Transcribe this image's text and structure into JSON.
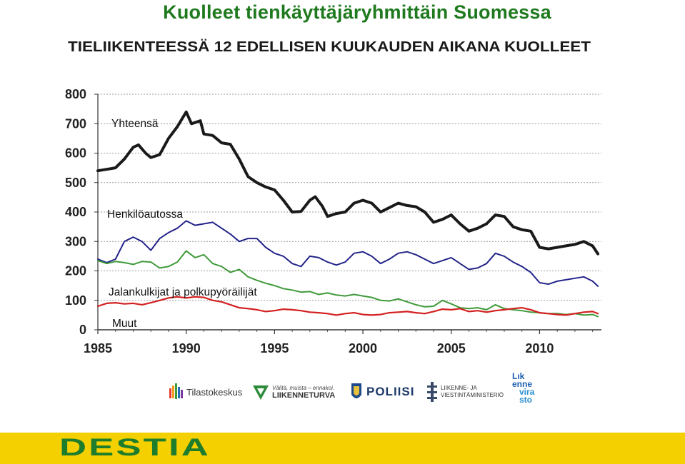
{
  "slide_title": "Kuolleet tienkäyttäjäryhmittäin Suomessa",
  "chart_data": {
    "type": "line",
    "title": "TIELIIKENTEESSÄ 12 EDELLISEN KUUKAUDEN AIKANA KUOLLEET",
    "xlabel": "",
    "ylabel": "",
    "xlim": [
      1985,
      2013.5
    ],
    "ylim": [
      0,
      800
    ],
    "x_ticks": [
      1985,
      1990,
      1995,
      2000,
      2005,
      2010
    ],
    "y_ticks": [
      0,
      100,
      200,
      300,
      400,
      500,
      600,
      700,
      800
    ],
    "grid": "horizontal dashed",
    "legend": "inline labels",
    "series": [
      {
        "name": "Yhteensä",
        "color": "#1a1a1a",
        "points": [
          [
            1985,
            540
          ],
          [
            1985.5,
            545
          ],
          [
            1986,
            550
          ],
          [
            1986.5,
            580
          ],
          [
            1987,
            620
          ],
          [
            1987.3,
            628
          ],
          [
            1987.7,
            600
          ],
          [
            1988,
            585
          ],
          [
            1988.5,
            595
          ],
          [
            1989,
            650
          ],
          [
            1989.5,
            690
          ],
          [
            1990,
            740
          ],
          [
            1990.3,
            700
          ],
          [
            1990.8,
            710
          ],
          [
            1991,
            665
          ],
          [
            1991.5,
            660
          ],
          [
            1992,
            635
          ],
          [
            1992.5,
            630
          ],
          [
            1993,
            580
          ],
          [
            1993.5,
            520
          ],
          [
            1994,
            500
          ],
          [
            1994.5,
            485
          ],
          [
            1995,
            475
          ],
          [
            1995.5,
            440
          ],
          [
            1996,
            400
          ],
          [
            1996.5,
            402
          ],
          [
            1997,
            440
          ],
          [
            1997.3,
            452
          ],
          [
            1997.7,
            420
          ],
          [
            1998,
            385
          ],
          [
            1998.5,
            395
          ],
          [
            1999,
            400
          ],
          [
            1999.5,
            430
          ],
          [
            2000,
            440
          ],
          [
            2000.5,
            430
          ],
          [
            2001,
            400
          ],
          [
            2001.5,
            415
          ],
          [
            2002,
            430
          ],
          [
            2002.5,
            422
          ],
          [
            2003,
            418
          ],
          [
            2003.5,
            400
          ],
          [
            2004,
            365
          ],
          [
            2004.5,
            375
          ],
          [
            2005,
            390
          ],
          [
            2005.5,
            360
          ],
          [
            2006,
            335
          ],
          [
            2006.5,
            345
          ],
          [
            2007,
            360
          ],
          [
            2007.5,
            390
          ],
          [
            2008,
            385
          ],
          [
            2008.5,
            350
          ],
          [
            2009,
            340
          ],
          [
            2009.5,
            335
          ],
          [
            2010,
            280
          ],
          [
            2010.5,
            275
          ],
          [
            2011,
            280
          ],
          [
            2011.5,
            285
          ],
          [
            2012,
            290
          ],
          [
            2012.5,
            300
          ],
          [
            2013,
            285
          ],
          [
            2013.3,
            258
          ]
        ]
      },
      {
        "name": "Henkilöautossa",
        "color": "#24248a",
        "points": [
          [
            1985,
            240
          ],
          [
            1985.5,
            228
          ],
          [
            1986,
            240
          ],
          [
            1986.5,
            300
          ],
          [
            1987,
            315
          ],
          [
            1987.5,
            300
          ],
          [
            1988,
            270
          ],
          [
            1988.5,
            310
          ],
          [
            1989,
            330
          ],
          [
            1989.5,
            345
          ],
          [
            1990,
            370
          ],
          [
            1990.5,
            355
          ],
          [
            1991,
            360
          ],
          [
            1991.5,
            365
          ],
          [
            1992,
            345
          ],
          [
            1992.5,
            325
          ],
          [
            1993,
            300
          ],
          [
            1993.5,
            310
          ],
          [
            1994,
            310
          ],
          [
            1994.5,
            280
          ],
          [
            1995,
            260
          ],
          [
            1995.5,
            250
          ],
          [
            1996,
            225
          ],
          [
            1996.5,
            215
          ],
          [
            1997,
            250
          ],
          [
            1997.5,
            245
          ],
          [
            1998,
            230
          ],
          [
            1998.5,
            220
          ],
          [
            1999,
            230
          ],
          [
            1999.5,
            260
          ],
          [
            2000,
            265
          ],
          [
            2000.5,
            250
          ],
          [
            2001,
            225
          ],
          [
            2001.5,
            240
          ],
          [
            2002,
            260
          ],
          [
            2002.5,
            265
          ],
          [
            2003,
            255
          ],
          [
            2003.5,
            240
          ],
          [
            2004,
            225
          ],
          [
            2004.5,
            235
          ],
          [
            2005,
            245
          ],
          [
            2005.5,
            225
          ],
          [
            2006,
            205
          ],
          [
            2006.5,
            210
          ],
          [
            2007,
            225
          ],
          [
            2007.5,
            260
          ],
          [
            2008,
            250
          ],
          [
            2008.5,
            230
          ],
          [
            2009,
            215
          ],
          [
            2009.5,
            195
          ],
          [
            2010,
            160
          ],
          [
            2010.5,
            155
          ],
          [
            2011,
            165
          ],
          [
            2011.5,
            170
          ],
          [
            2012,
            175
          ],
          [
            2012.5,
            180
          ],
          [
            2013,
            165
          ],
          [
            2013.3,
            148
          ]
        ]
      },
      {
        "name": "Jalankulkijat ja polkupyöräilijät",
        "color": "#3f9a3a",
        "points": [
          [
            1985,
            235
          ],
          [
            1985.5,
            225
          ],
          [
            1986,
            232
          ],
          [
            1986.5,
            228
          ],
          [
            1987,
            222
          ],
          [
            1987.5,
            232
          ],
          [
            1988,
            230
          ],
          [
            1988.5,
            210
          ],
          [
            1989,
            215
          ],
          [
            1989.5,
            230
          ],
          [
            1990,
            268
          ],
          [
            1990.5,
            245
          ],
          [
            1991,
            255
          ],
          [
            1991.5,
            225
          ],
          [
            1992,
            215
          ],
          [
            1992.5,
            195
          ],
          [
            1993,
            205
          ],
          [
            1993.5,
            180
          ],
          [
            1994,
            168
          ],
          [
            1994.5,
            158
          ],
          [
            1995,
            150
          ],
          [
            1995.5,
            140
          ],
          [
            1996,
            135
          ],
          [
            1996.5,
            128
          ],
          [
            1997,
            130
          ],
          [
            1997.5,
            120
          ],
          [
            1998,
            125
          ],
          [
            1998.5,
            118
          ],
          [
            1999,
            115
          ],
          [
            1999.5,
            120
          ],
          [
            2000,
            115
          ],
          [
            2000.5,
            110
          ],
          [
            2001,
            100
          ],
          [
            2001.5,
            98
          ],
          [
            2002,
            105
          ],
          [
            2002.5,
            95
          ],
          [
            2003,
            85
          ],
          [
            2003.5,
            78
          ],
          [
            2004,
            80
          ],
          [
            2004.5,
            100
          ],
          [
            2005,
            88
          ],
          [
            2005.5,
            75
          ],
          [
            2006,
            72
          ],
          [
            2006.5,
            75
          ],
          [
            2007,
            68
          ],
          [
            2007.5,
            85
          ],
          [
            2008,
            72
          ],
          [
            2008.5,
            68
          ],
          [
            2009,
            65
          ],
          [
            2009.5,
            60
          ],
          [
            2010,
            58
          ],
          [
            2010.5,
            55
          ],
          [
            2011,
            55
          ],
          [
            2011.5,
            52
          ],
          [
            2012,
            55
          ],
          [
            2012.5,
            50
          ],
          [
            2013,
            52
          ],
          [
            2013.3,
            45
          ]
        ]
      },
      {
        "name": "Muut",
        "color": "#d42020",
        "points": [
          [
            1985,
            80
          ],
          [
            1985.5,
            90
          ],
          [
            1986,
            92
          ],
          [
            1986.5,
            88
          ],
          [
            1987,
            90
          ],
          [
            1987.5,
            85
          ],
          [
            1988,
            92
          ],
          [
            1988.5,
            100
          ],
          [
            1989,
            108
          ],
          [
            1989.5,
            112
          ],
          [
            1990,
            108
          ],
          [
            1990.5,
            112
          ],
          [
            1991,
            110
          ],
          [
            1991.5,
            100
          ],
          [
            1992,
            95
          ],
          [
            1992.5,
            85
          ],
          [
            1993,
            75
          ],
          [
            1993.5,
            72
          ],
          [
            1994,
            68
          ],
          [
            1994.5,
            62
          ],
          [
            1995,
            65
          ],
          [
            1995.5,
            70
          ],
          [
            1996,
            68
          ],
          [
            1996.5,
            65
          ],
          [
            1997,
            60
          ],
          [
            1997.5,
            58
          ],
          [
            1998,
            55
          ],
          [
            1998.5,
            50
          ],
          [
            1999,
            55
          ],
          [
            1999.5,
            58
          ],
          [
            2000,
            52
          ],
          [
            2000.5,
            50
          ],
          [
            2001,
            52
          ],
          [
            2001.5,
            58
          ],
          [
            2002,
            60
          ],
          [
            2002.5,
            62
          ],
          [
            2003,
            58
          ],
          [
            2003.5,
            55
          ],
          [
            2004,
            62
          ],
          [
            2004.5,
            70
          ],
          [
            2005,
            68
          ],
          [
            2005.5,
            72
          ],
          [
            2006,
            62
          ],
          [
            2006.5,
            65
          ],
          [
            2007,
            60
          ],
          [
            2007.5,
            65
          ],
          [
            2008,
            68
          ],
          [
            2008.5,
            72
          ],
          [
            2009,
            75
          ],
          [
            2009.5,
            68
          ],
          [
            2010,
            58
          ],
          [
            2010.5,
            55
          ],
          [
            2011,
            52
          ],
          [
            2011.5,
            50
          ],
          [
            2012,
            55
          ],
          [
            2012.5,
            60
          ],
          [
            2013,
            62
          ],
          [
            2013.3,
            55
          ]
        ]
      }
    ]
  },
  "logos": [
    {
      "name": "Tilastokeskus",
      "text": "Tilastokeskus"
    },
    {
      "name": "Liikenneturva",
      "tagline": "Välitä, muista – ennakoi.",
      "text": "LIIKENNETURVA"
    },
    {
      "name": "Poliisi",
      "text": "POLIISI"
    },
    {
      "name": "LVM",
      "line1": "LIIKENNE- JA",
      "line2": "VIESTINTÄMINISTERIÖ"
    },
    {
      "name": "Liikennevirasto",
      "line1": "Lık",
      "line2": "enne",
      "line3": "vira",
      "line4": "sto"
    }
  ],
  "footer": {
    "brand": "DESTIA"
  },
  "colors": {
    "title_green": "#1f7a1f",
    "footer_yellow": "#f4d000",
    "destia_green": "#1d7d2c"
  }
}
